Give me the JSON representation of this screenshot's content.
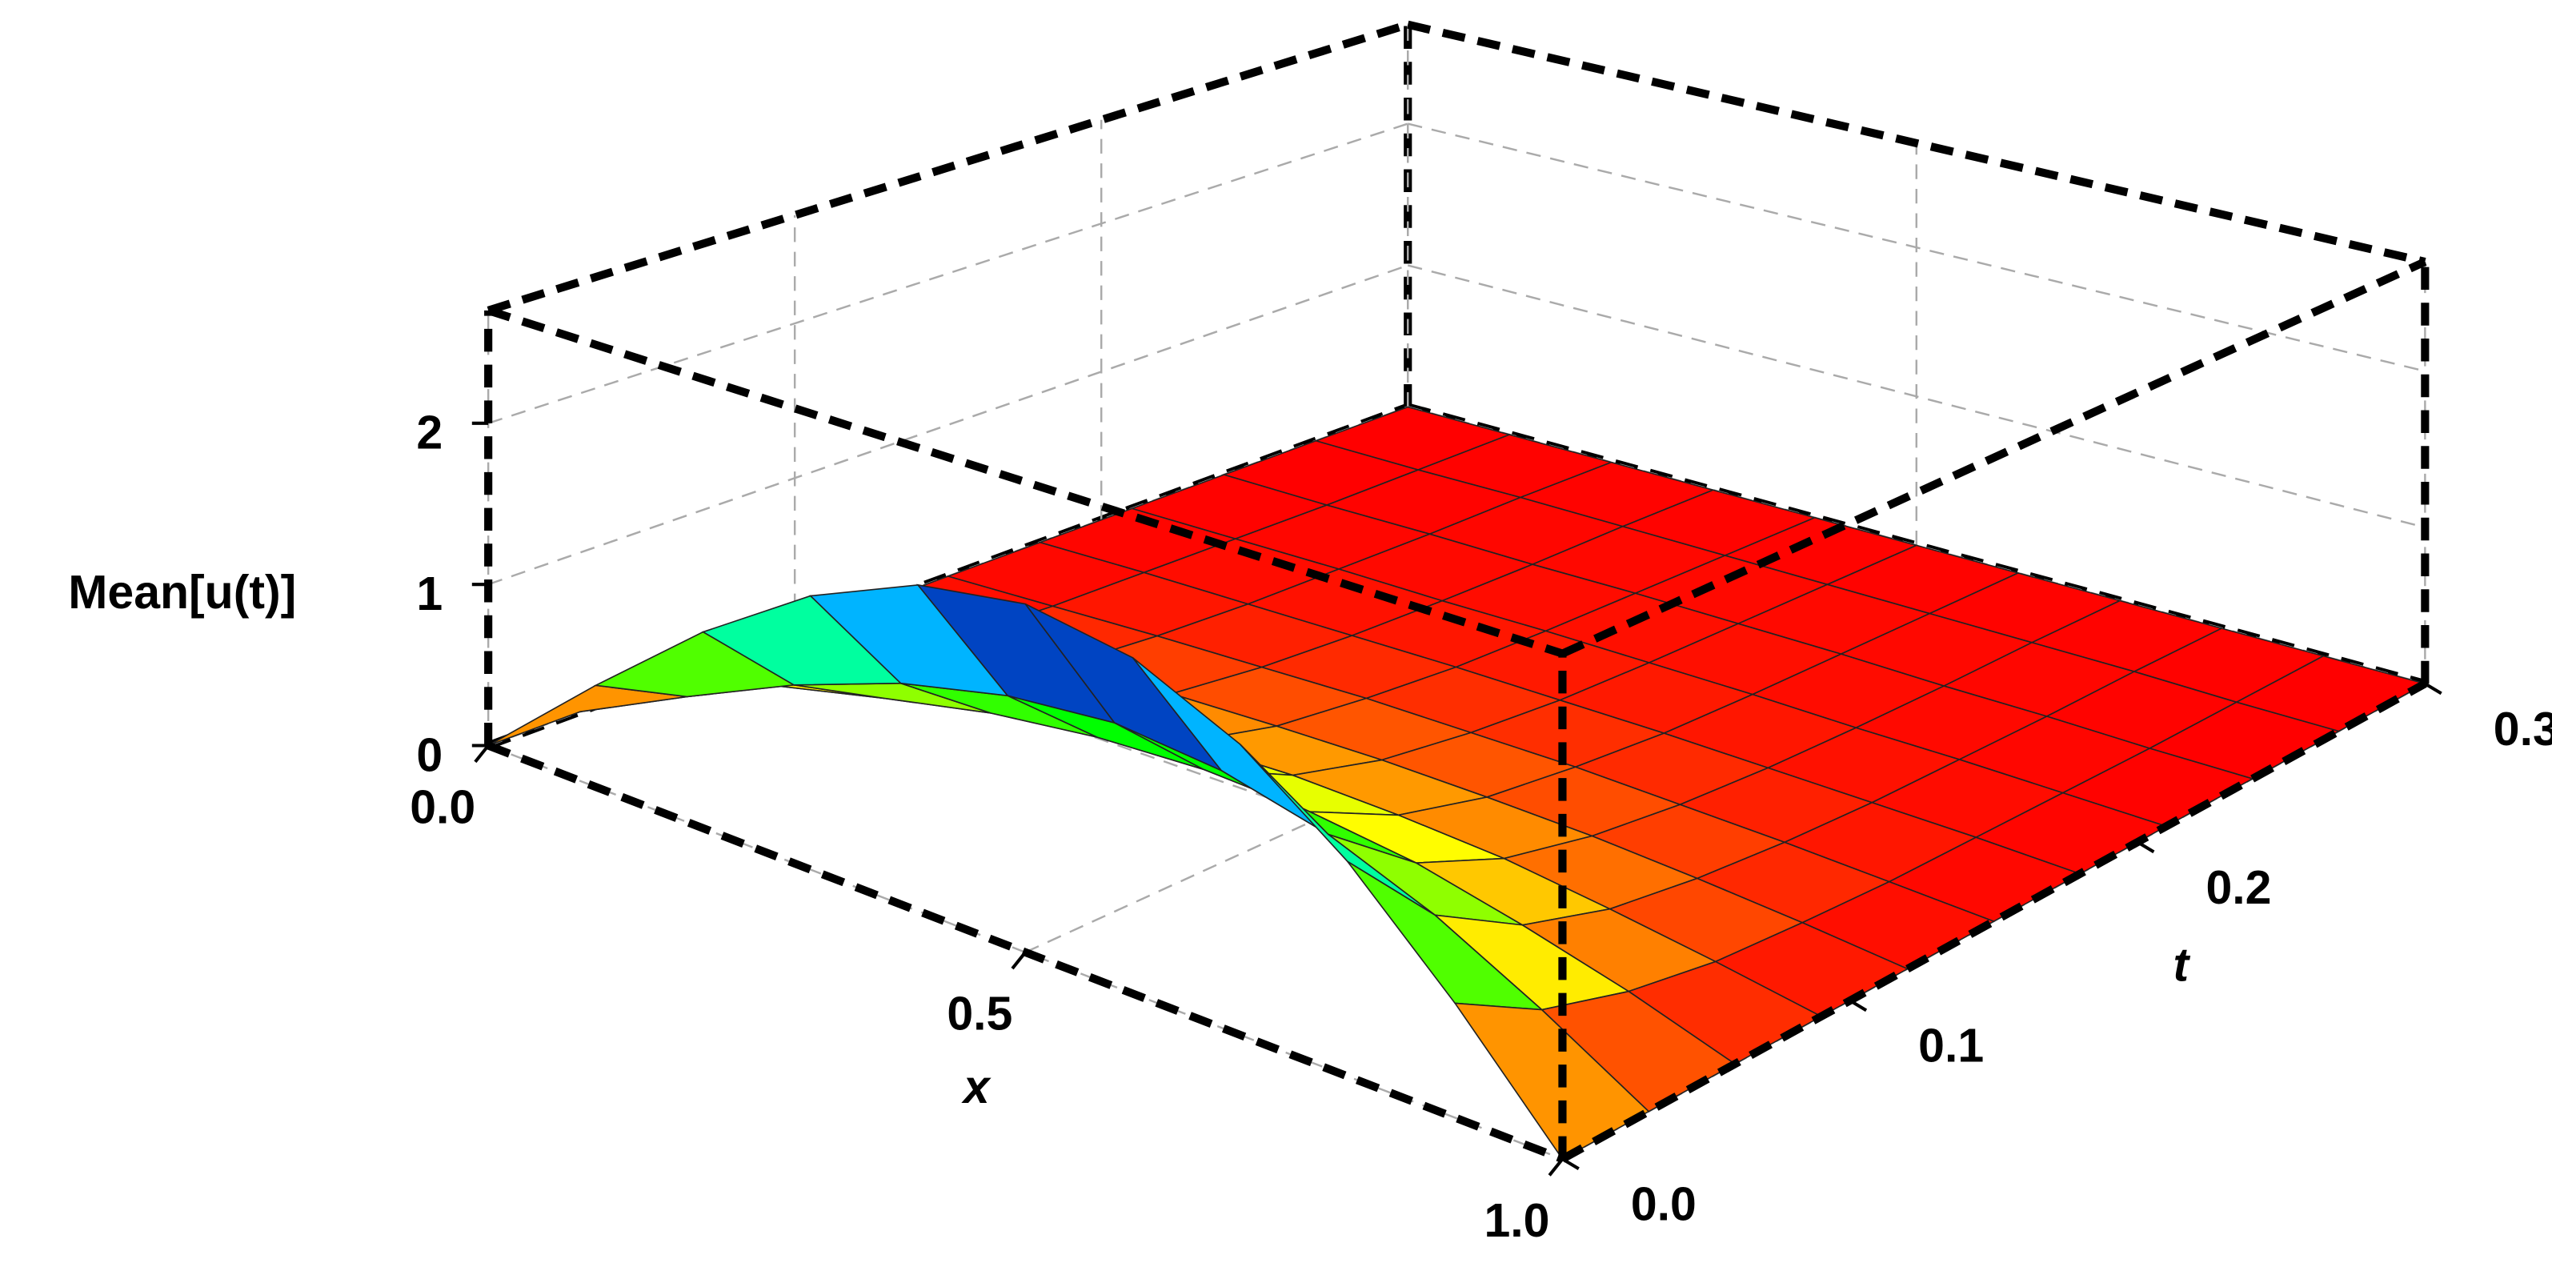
{
  "chart_data": {
    "type": "surface",
    "xlabel": "x",
    "ylabel": "t",
    "zlabel": "Mean[u(t)]",
    "x": [
      0,
      0.1,
      0.2,
      0.3,
      0.4,
      0.5,
      0.6,
      0.7,
      0.8,
      0.9,
      1
    ],
    "y": [
      0,
      0.03,
      0.06,
      0.09,
      0.12,
      0.15,
      0.18,
      0.21,
      0.24,
      0.27,
      0.3
    ],
    "z": [
      [
        0,
        0.62,
        1.18,
        1.62,
        1.9,
        2.0,
        1.9,
        1.62,
        1.18,
        0.62,
        0
      ],
      [
        0,
        0.34,
        0.65,
        0.89,
        1.04,
        1.1,
        1.04,
        0.89,
        0.65,
        0.34,
        0
      ],
      [
        0,
        0.19,
        0.35,
        0.49,
        0.57,
        0.6,
        0.57,
        0.49,
        0.35,
        0.19,
        0
      ],
      [
        0,
        0.1,
        0.19,
        0.27,
        0.31,
        0.33,
        0.31,
        0.27,
        0.19,
        0.1,
        0
      ],
      [
        0,
        0.06,
        0.11,
        0.15,
        0.17,
        0.18,
        0.17,
        0.15,
        0.11,
        0.06,
        0
      ],
      [
        0,
        0.03,
        0.06,
        0.08,
        0.1,
        0.1,
        0.1,
        0.08,
        0.06,
        0.03,
        0
      ],
      [
        0,
        0.02,
        0.03,
        0.04,
        0.05,
        0.05,
        0.05,
        0.04,
        0.03,
        0.02,
        0
      ],
      [
        0,
        0.01,
        0.02,
        0.02,
        0.03,
        0.03,
        0.03,
        0.02,
        0.02,
        0.01,
        0
      ],
      [
        0,
        0,
        0.01,
        0.01,
        0.02,
        0.02,
        0.02,
        0.01,
        0.01,
        0,
        0
      ],
      [
        0,
        0,
        0.01,
        0.01,
        0.01,
        0.01,
        0.01,
        0.01,
        0.01,
        0,
        0
      ],
      [
        0,
        0,
        0,
        0,
        0,
        0,
        0,
        0,
        0,
        0,
        0
      ]
    ],
    "xlim": [
      0,
      1
    ],
    "ylim": [
      0,
      0.3
    ],
    "zlim": [
      0,
      2.7
    ],
    "xticks": [
      {
        "value": 0,
        "label": "0.0"
      },
      {
        "value": 0.5,
        "label": "0.5"
      },
      {
        "value": 1,
        "label": "1.0"
      }
    ],
    "yticks": [
      {
        "value": 0,
        "label": "0.0"
      },
      0.1,
      0.2,
      0.3
    ],
    "zticks": [
      0,
      1,
      2
    ],
    "grid": true
  }
}
